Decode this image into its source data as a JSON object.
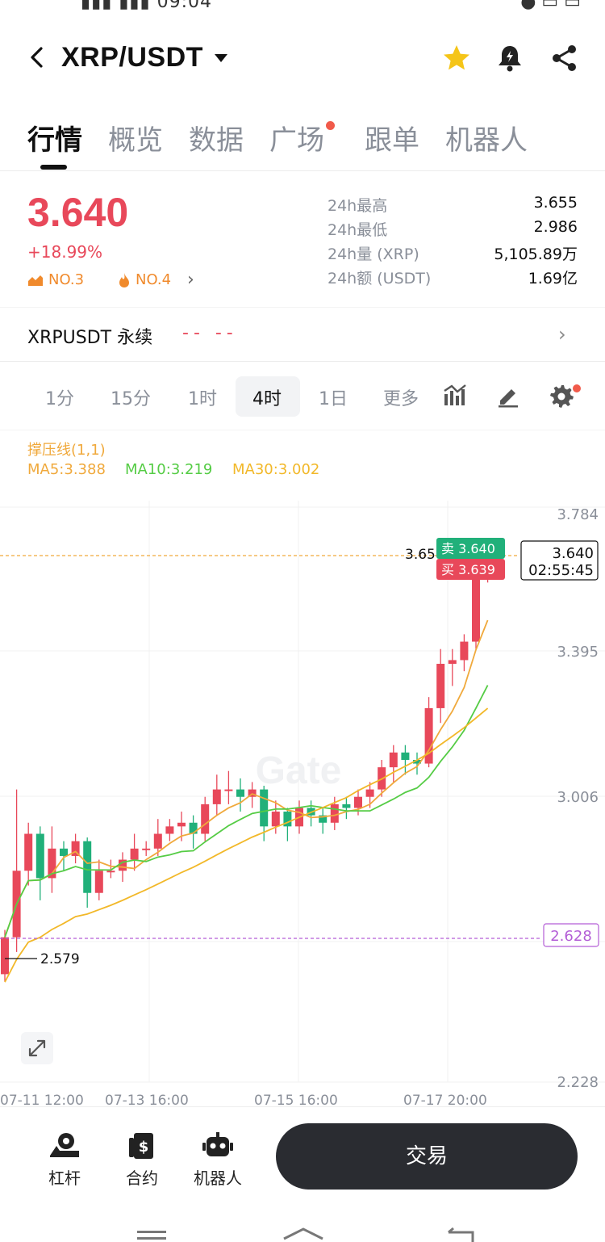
{
  "header": {
    "pair": "XRP/USDT"
  },
  "tabs": [
    {
      "label": "行情",
      "active": true
    },
    {
      "label": "概览"
    },
    {
      "label": "数据"
    },
    {
      "label": "广场",
      "dot": true
    },
    {
      "label": "跟单"
    },
    {
      "label": "机器人"
    }
  ],
  "ticker": {
    "price": "3.640",
    "change": "+18.99%",
    "rank1": "NO.3",
    "rank2": "NO.4",
    "stats": [
      {
        "label": "24h最高",
        "value": "3.655"
      },
      {
        "label": "24h最低",
        "value": "2.986"
      },
      {
        "label": "24h量 (XRP)",
        "value": "5,105.89万"
      },
      {
        "label": "24h额 (USDT)",
        "value": "1.69亿"
      }
    ]
  },
  "perp": {
    "label": "XRPUSDT 永续",
    "value": "--  --"
  },
  "timeframes": [
    "1分",
    "15分",
    "1时",
    "4时",
    "1日",
    "更多"
  ],
  "active_timeframe": "4时",
  "indicators": {
    "sr": "撑压线(1,1)",
    "ma5": "MA5:3.388",
    "ma10": "MA10:3.219",
    "ma30": "MA30:3.002"
  },
  "chart": {
    "y_labels": [
      "3.784",
      "3.395",
      "3.006",
      "2.228"
    ],
    "x_labels": [
      "07-11 12:00",
      "07-13 16:00",
      "07-15 16:00",
      "07-17 20:00"
    ],
    "current_price_box": "3.640",
    "countdown": "02:55:45",
    "sell_tag": "卖 3.640",
    "buy_tag": "买 3.639",
    "high_marker": "3.65",
    "low_marker": "2.579",
    "support_line": "2.628",
    "watermark": "Gate",
    "colors": {
      "up": "#e8485a",
      "down": "#21b07a",
      "ma5": "#f0a93c",
      "ma10": "#55cc45",
      "ma30": "#f2b829",
      "support": "#b35ed6"
    }
  },
  "bottom": {
    "leverage": "杠杆",
    "contract": "合约",
    "robot": "机器人",
    "trade": "交易"
  }
}
